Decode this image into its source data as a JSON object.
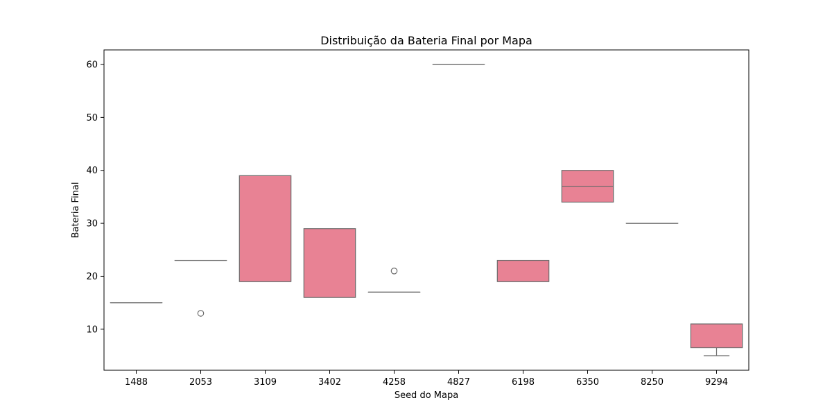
{
  "chart_data": {
    "type": "boxplot",
    "title": "Distribuição da Bateria Final por Mapa",
    "xlabel": "Seed do Mapa",
    "ylabel": "Bateria Final",
    "ylim": [
      2.25,
      62.75
    ],
    "yticks": [
      10,
      20,
      30,
      40,
      50,
      60
    ],
    "grid": false,
    "legend": "none",
    "colors": {
      "box_fill": "#e88294",
      "box_edge": "#6b6b6b",
      "axis": "#000000"
    },
    "categories": [
      "1488",
      "2053",
      "3109",
      "3402",
      "4258",
      "4827",
      "6198",
      "6350",
      "8250",
      "9294"
    ],
    "boxes": [
      {
        "category": "1488",
        "whisker_low": 15,
        "q1": 15,
        "median": 15,
        "q3": 15,
        "whisker_high": 15,
        "outliers": []
      },
      {
        "category": "2053",
        "whisker_low": 23,
        "q1": 23,
        "median": 23,
        "q3": 23,
        "whisker_high": 23,
        "outliers": [
          13
        ]
      },
      {
        "category": "3109",
        "whisker_low": 19,
        "q1": 19,
        "median": 19,
        "q3": 39,
        "whisker_high": 39,
        "outliers": []
      },
      {
        "category": "3402",
        "whisker_low": 16,
        "q1": 16,
        "median": 16,
        "q3": 29,
        "whisker_high": 29,
        "outliers": []
      },
      {
        "category": "4258",
        "whisker_low": 17,
        "q1": 17,
        "median": 17,
        "q3": 17,
        "whisker_high": 17,
        "outliers": [
          21
        ]
      },
      {
        "category": "4827",
        "whisker_low": 60,
        "q1": 60,
        "median": 60,
        "q3": 60,
        "whisker_high": 60,
        "outliers": []
      },
      {
        "category": "6198",
        "whisker_low": 19,
        "q1": 19,
        "median": 19,
        "q3": 23,
        "whisker_high": 23,
        "outliers": []
      },
      {
        "category": "6350",
        "whisker_low": 34,
        "q1": 34,
        "median": 37,
        "q3": 40,
        "whisker_high": 40,
        "outliers": []
      },
      {
        "category": "8250",
        "whisker_low": 30,
        "q1": 30,
        "median": 30,
        "q3": 30,
        "whisker_high": 30,
        "outliers": []
      },
      {
        "category": "9294",
        "whisker_low": 5,
        "q1": 6.5,
        "median": 11,
        "q3": 11,
        "whisker_high": 11,
        "outliers": []
      }
    ]
  }
}
